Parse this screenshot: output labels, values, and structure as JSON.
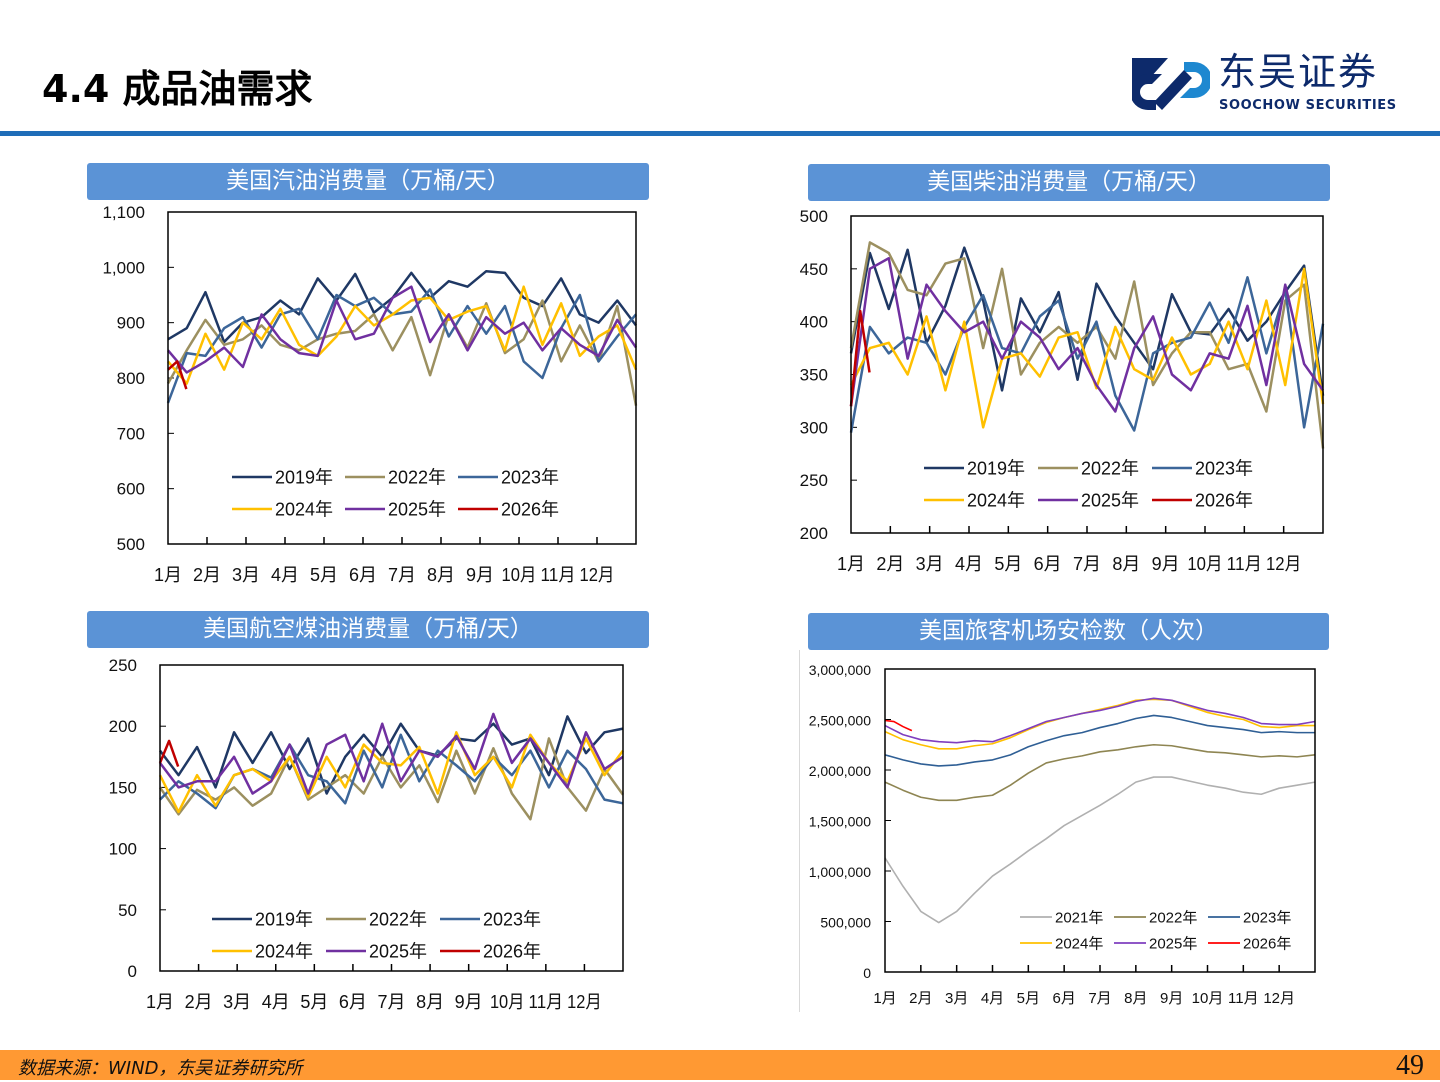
{
  "header": {
    "title": "4.4 成品油需求",
    "logo_cn": "东吴证券",
    "logo_en": "SOOCHOW SECURITIES",
    "rule_color": "#1F6DB8"
  },
  "footer": {
    "source": "数据来源：WIND，东吴证券研究所",
    "page_number": "49",
    "color": "#FF9933"
  },
  "chart_data": [
    {
      "id": "gasoline",
      "type": "line",
      "title": "美国汽油消费量（万桶/天）",
      "ylim": [
        500,
        1100
      ],
      "ytick_labels": [
        "500",
        "600",
        "700",
        "800",
        "900",
        "1,000",
        "1,100"
      ],
      "xtick_labels": [
        "1月",
        "2月",
        "3月",
        "4月",
        "5月",
        "6月",
        "7月",
        "8月",
        "9月",
        "10月",
        "11月",
        "12月"
      ],
      "x_unit": "week",
      "legend": "bottom-inside",
      "grid": false,
      "series": [
        {
          "name": "2019年",
          "color": "#1F3864",
          "values": [
            870,
            890,
            955,
            865,
            900,
            910,
            940,
            915,
            980,
            940,
            988,
            918,
            945,
            990,
            945,
            975,
            965,
            993,
            990,
            945,
            930,
            980,
            915,
            900,
            940,
            895
          ]
        },
        {
          "name": "2022年",
          "color": "#9C9060",
          "values": [
            790,
            850,
            905,
            860,
            870,
            895,
            860,
            850,
            870,
            880,
            885,
            915,
            850,
            910,
            805,
            915,
            855,
            935,
            845,
            870,
            940,
            830,
            895,
            830,
            930,
            750
          ]
        },
        {
          "name": "2023年",
          "color": "#3C6699",
          "values": [
            755,
            845,
            840,
            890,
            910,
            855,
            915,
            925,
            870,
            950,
            930,
            945,
            915,
            920,
            960,
            875,
            930,
            880,
            930,
            830,
            800,
            890,
            950,
            830,
            875,
            915
          ]
        },
        {
          "name": "2024年",
          "color": "#FFC000",
          "values": [
            830,
            790,
            880,
            815,
            900,
            870,
            925,
            860,
            840,
            875,
            930,
            895,
            915,
            940,
            945,
            905,
            920,
            930,
            850,
            965,
            860,
            935,
            840,
            875,
            895,
            815
          ]
        },
        {
          "name": "2025年",
          "color": "#7030A0",
          "values": [
            850,
            810,
            830,
            855,
            820,
            915,
            870,
            845,
            840,
            940,
            870,
            880,
            945,
            965,
            865,
            915,
            850,
            910,
            880,
            900,
            850,
            890,
            860,
            840,
            905,
            855
          ]
        },
        {
          "name": "2026年",
          "color": "#C00000",
          "weeks": [
            1,
            2,
            3
          ],
          "values": [
            815,
            830,
            780
          ]
        }
      ]
    },
    {
      "id": "diesel",
      "type": "line",
      "title": "美国柴油消费量（万桶/天）",
      "ylim": [
        200,
        500
      ],
      "ytick_labels": [
        "200",
        "250",
        "300",
        "350",
        "400",
        "450",
        "500"
      ],
      "xtick_labels": [
        "1月",
        "2月",
        "3月",
        "4月",
        "5月",
        "6月",
        "7月",
        "8月",
        "9月",
        "10月",
        "11月",
        "12月"
      ],
      "x_unit": "week",
      "legend": "bottom-inside",
      "grid": false,
      "series": [
        {
          "name": "2019年",
          "color": "#1F3864",
          "values": [
            370,
            465,
            412,
            468,
            380,
            415,
            470,
            420,
            335,
            422,
            390,
            428,
            345,
            436,
            405,
            380,
            355,
            426,
            390,
            388,
            412,
            382,
            400,
            428,
            453,
            330
          ]
        },
        {
          "name": "2022年",
          "color": "#9C9060",
          "values": [
            375,
            475,
            465,
            430,
            425,
            455,
            460,
            375,
            450,
            350,
            380,
            395,
            380,
            395,
            365,
            438,
            340,
            370,
            390,
            390,
            355,
            360,
            315,
            420,
            435,
            280
          ]
        },
        {
          "name": "2023年",
          "color": "#3C6699",
          "values": [
            295,
            395,
            370,
            385,
            380,
            350,
            395,
            425,
            375,
            370,
            405,
            420,
            365,
            400,
            330,
            297,
            370,
            380,
            385,
            418,
            380,
            442,
            370,
            430,
            300,
            398
          ]
        },
        {
          "name": "2024年",
          "color": "#FFC000",
          "values": [
            340,
            375,
            380,
            350,
            405,
            335,
            400,
            300,
            365,
            370,
            348,
            385,
            390,
            337,
            395,
            355,
            345,
            385,
            350,
            360,
            400,
            355,
            420,
            340,
            450,
            322
          ]
        },
        {
          "name": "2025年",
          "color": "#7030A0",
          "values": [
            320,
            450,
            460,
            365,
            435,
            410,
            390,
            400,
            365,
            400,
            385,
            355,
            375,
            340,
            315,
            375,
            405,
            350,
            335,
            370,
            365,
            415,
            340,
            435,
            360,
            335
          ]
        },
        {
          "name": "2026年",
          "color": "#C00000",
          "weeks": [
            1,
            2,
            3
          ],
          "values": [
            320,
            410,
            352
          ]
        }
      ]
    },
    {
      "id": "jet",
      "type": "line",
      "title": "美国航空煤油消费量（万桶/天）",
      "ylim": [
        0,
        250
      ],
      "ytick_labels": [
        "0",
        "50",
        "100",
        "150",
        "200",
        "250"
      ],
      "xtick_labels": [
        "1月",
        "2月",
        "3月",
        "4月",
        "5月",
        "6月",
        "7月",
        "8月",
        "9月",
        "10月",
        "11月",
        "12月"
      ],
      "x_unit": "week",
      "legend": "bottom-inside",
      "grid": false,
      "series": [
        {
          "name": "2019年",
          "color": "#1F3864",
          "values": [
            180,
            160,
            183,
            150,
            195,
            170,
            195,
            165,
            190,
            145,
            175,
            193,
            175,
            202,
            180,
            176,
            190,
            188,
            202,
            185,
            190,
            160,
            208,
            178,
            195,
            198
          ]
        },
        {
          "name": "2022年",
          "color": "#9C9060",
          "values": [
            150,
            128,
            148,
            140,
            150,
            135,
            145,
            175,
            140,
            150,
            160,
            145,
            175,
            150,
            168,
            138,
            180,
            145,
            182,
            145,
            124,
            190,
            150,
            131,
            165,
            144
          ]
        },
        {
          "name": "2023年",
          "color": "#3C6699",
          "values": [
            140,
            155,
            145,
            133,
            160,
            165,
            158,
            185,
            160,
            155,
            137,
            180,
            150,
            193,
            155,
            180,
            168,
            155,
            175,
            160,
            180,
            150,
            180,
            165,
            140,
            137
          ]
        },
        {
          "name": "2024年",
          "color": "#FFC000",
          "values": [
            160,
            130,
            160,
            135,
            160,
            165,
            155,
            175,
            142,
            175,
            150,
            185,
            170,
            168,
            183,
            145,
            195,
            160,
            175,
            150,
            193,
            170,
            155,
            190,
            160,
            180
          ]
        },
        {
          "name": "2025年",
          "color": "#7030A0",
          "values": [
            170,
            150,
            155,
            155,
            175,
            145,
            155,
            185,
            145,
            185,
            193,
            155,
            202,
            155,
            180,
            175,
            192,
            165,
            210,
            170,
            190,
            170,
            150,
            195,
            165,
            175
          ]
        },
        {
          "name": "2026年",
          "color": "#C00000",
          "weeks": [
            1,
            2,
            3
          ],
          "values": [
            170,
            188,
            167
          ]
        }
      ]
    },
    {
      "id": "tsa",
      "type": "line",
      "title": "美国旅客机场安检数（人次）",
      "ylim": [
        0,
        3000000
      ],
      "ytick_labels": [
        "0",
        "500,000",
        "1,000,000",
        "1,500,000",
        "2,000,000",
        "2,500,000",
        "3,000,000"
      ],
      "xtick_labels": [
        "1月",
        "2月",
        "3月",
        "4月",
        "5月",
        "6月",
        "7月",
        "8月",
        "9月",
        "10月",
        "11月",
        "12月"
      ],
      "x_unit": "month",
      "x": [
        1,
        1.5,
        2,
        2.5,
        3,
        3.5,
        4,
        4.5,
        5,
        5.5,
        6,
        6.5,
        7,
        7.5,
        8,
        8.5,
        9,
        9.5,
        10,
        10.5,
        11,
        11.5,
        12,
        12.5,
        13
      ],
      "legend": "bottom-inside",
      "grid": false,
      "series": [
        {
          "name": "2021年",
          "color": "#B0B0B0",
          "values": [
            1130000,
            850000,
            600000,
            490000,
            600000,
            780000,
            950000,
            1070000,
            1200000,
            1320000,
            1450000,
            1550000,
            1650000,
            1760000,
            1880000,
            1930000,
            1930000,
            1890000,
            1850000,
            1820000,
            1780000,
            1760000,
            1820000,
            1850000,
            1880000
          ]
        },
        {
          "name": "2022年",
          "color": "#8E8552",
          "values": [
            1880000,
            1800000,
            1730000,
            1700000,
            1700000,
            1730000,
            1750000,
            1850000,
            1970000,
            2070000,
            2110000,
            2140000,
            2180000,
            2200000,
            2230000,
            2250000,
            2240000,
            2210000,
            2180000,
            2170000,
            2150000,
            2130000,
            2140000,
            2130000,
            2150000
          ]
        },
        {
          "name": "2023年",
          "color": "#2F5F95",
          "values": [
            2150000,
            2100000,
            2060000,
            2040000,
            2050000,
            2080000,
            2100000,
            2150000,
            2230000,
            2290000,
            2340000,
            2370000,
            2420000,
            2460000,
            2510000,
            2540000,
            2520000,
            2480000,
            2440000,
            2420000,
            2400000,
            2370000,
            2380000,
            2370000,
            2370000
          ]
        },
        {
          "name": "2024年",
          "color": "#FFC000",
          "values": [
            2380000,
            2300000,
            2250000,
            2210000,
            2210000,
            2240000,
            2260000,
            2320000,
            2400000,
            2470000,
            2520000,
            2560000,
            2600000,
            2640000,
            2690000,
            2700000,
            2690000,
            2630000,
            2570000,
            2530000,
            2500000,
            2430000,
            2420000,
            2440000,
            2440000
          ]
        },
        {
          "name": "2025年",
          "color": "#7F3FBF",
          "values": [
            2440000,
            2350000,
            2300000,
            2280000,
            2270000,
            2290000,
            2280000,
            2340000,
            2410000,
            2480000,
            2520000,
            2560000,
            2590000,
            2630000,
            2680000,
            2710000,
            2690000,
            2640000,
            2590000,
            2560000,
            2520000,
            2460000,
            2450000,
            2450000,
            2480000
          ]
        },
        {
          "name": "2026年",
          "color": "#FF0000",
          "x": [
            1,
            1.25,
            1.5,
            1.75
          ],
          "values": [
            2490000,
            2480000,
            2430000,
            2390000
          ]
        }
      ]
    }
  ]
}
